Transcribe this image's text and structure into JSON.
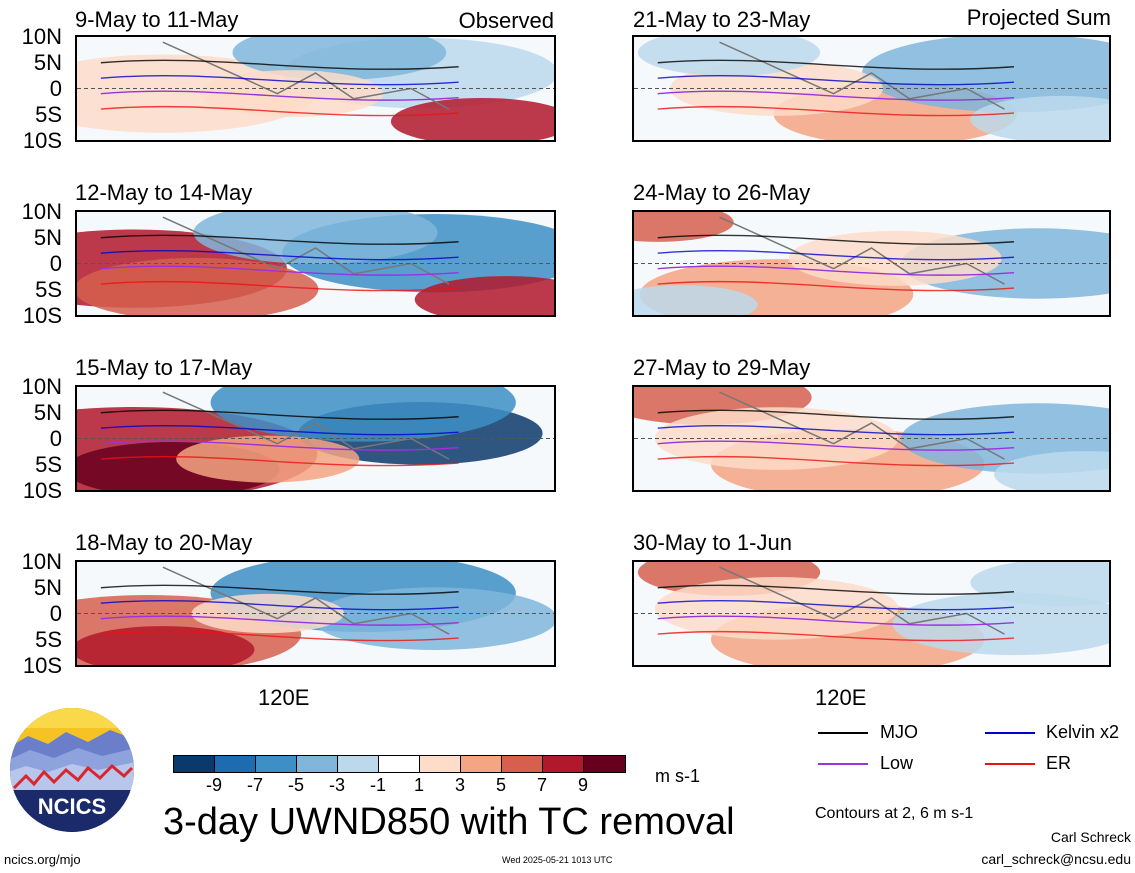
{
  "panels": [
    {
      "title": "9-May to 11-May",
      "corner": "Observed"
    },
    {
      "title": "12-May to 14-May",
      "corner": ""
    },
    {
      "title": "15-May to 17-May",
      "corner": ""
    },
    {
      "title": "18-May to 20-May",
      "corner": ""
    },
    {
      "title": "21-May to 23-May",
      "corner": "Projected Sum"
    },
    {
      "title": "24-May to 26-May",
      "corner": ""
    },
    {
      "title": "27-May to 29-May",
      "corner": ""
    },
    {
      "title": "30-May to 1-Jun",
      "corner": ""
    }
  ],
  "lat_labels": [
    "10N",
    "5N",
    "0",
    "5S",
    "10S"
  ],
  "lon_label": "120E",
  "colorbar": {
    "colors": [
      "#0a3a6b",
      "#1d6bb0",
      "#3d8fc6",
      "#7fb6da",
      "#bcd9ec",
      "#ffffff",
      "#fddcc9",
      "#f4a582",
      "#d6604d",
      "#b2182b",
      "#67001f"
    ],
    "labels": [
      "-9",
      "-7",
      "-5",
      "-3",
      "-1",
      "1",
      "3",
      "5",
      "7",
      "9"
    ],
    "unit": "m s-1"
  },
  "main_title": "3-day UWND850 with TC removal",
  "legend": {
    "items": [
      {
        "label": "MJO",
        "color": "#000000"
      },
      {
        "label": "Kelvin x2",
        "color": "#0000cc"
      },
      {
        "label": "Low",
        "color": "#9933dd"
      },
      {
        "label": "ER",
        "color": "#ee1111"
      }
    ],
    "contours_note": "Contours at 2, 6 m s-1"
  },
  "logo": {
    "text": "NCICS"
  },
  "footer": {
    "left": "ncics.org/mjo",
    "center": "Wed 2025-05-21 1013 UTC",
    "author": "Carl Schreck",
    "email": "carl_schreck@ncsu.edu"
  }
}
